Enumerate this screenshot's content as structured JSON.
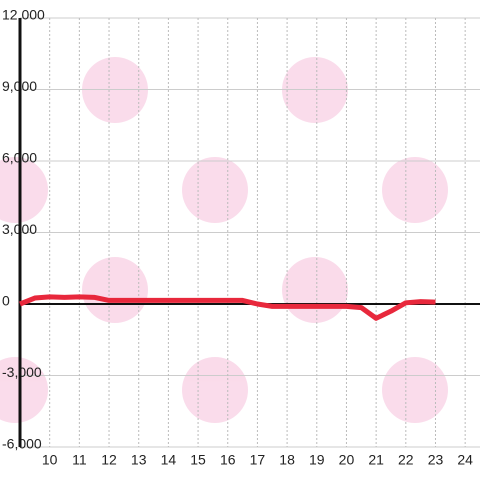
{
  "chart_data": {
    "type": "line",
    "x": [
      9,
      9.5,
      10,
      10.5,
      11,
      11.5,
      12,
      13,
      14,
      15,
      16,
      16.5,
      17,
      17.5,
      18,
      19,
      20,
      20.5,
      21,
      21.5,
      22,
      22.5,
      23
    ],
    "series": [
      {
        "color": "#e8283c",
        "values": [
          0,
          250,
          300,
          280,
          300,
          280,
          150,
          150,
          150,
          150,
          150,
          150,
          0,
          -100,
          -100,
          -100,
          -100,
          -150,
          -600,
          -300,
          50,
          100,
          80
        ]
      }
    ],
    "xlim": [
      9,
      24.5
    ],
    "xticks": [
      10,
      11,
      12,
      13,
      14,
      15,
      16,
      17,
      18,
      19,
      20,
      21,
      22,
      23,
      24
    ],
    "ylim": [
      -6000,
      12000
    ],
    "yticks": [
      {
        "value": -6000,
        "label": "-6,000"
      },
      {
        "value": -3000,
        "label": "-3,000"
      },
      0,
      {
        "value": 3000,
        "label": "3,000"
      },
      {
        "value": 6000,
        "label": "6,000"
      },
      {
        "value": 9000,
        "label": "9,000"
      },
      {
        "value": 12000,
        "label": "12,000"
      }
    ],
    "grid": true
  }
}
